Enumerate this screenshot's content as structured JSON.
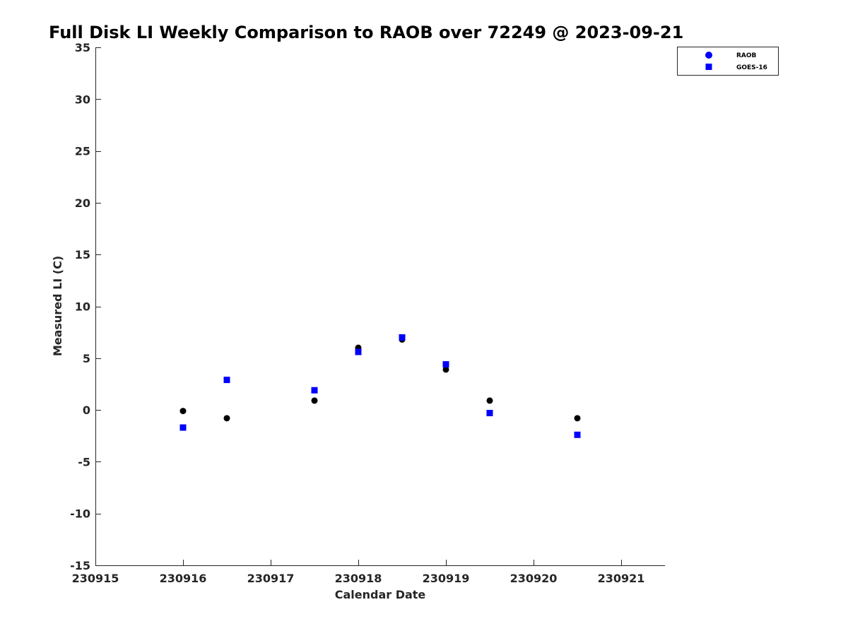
{
  "chart_data": {
    "type": "scatter",
    "title": "Full Disk LI Weekly Comparison to RAOB over 72249 @ 2023-09-21",
    "xlabel": "Calendar Date",
    "ylabel": "Measured LI (C)",
    "xlim": [
      230915,
      230921.5
    ],
    "ylim": [
      -15,
      35
    ],
    "xticks": [
      230915,
      230916,
      230917,
      230918,
      230919,
      230920,
      230921
    ],
    "xtick_labels": [
      "230915",
      "230916",
      "230917",
      "230918",
      "230919",
      "230920",
      "230921"
    ],
    "yticks": [
      -15,
      -10,
      -5,
      0,
      5,
      10,
      15,
      20,
      25,
      30,
      35
    ],
    "ytick_labels": [
      "-15",
      "-10",
      "-5",
      "0",
      "5",
      "10",
      "15",
      "20",
      "25",
      "30",
      "35"
    ],
    "grid": false,
    "legend_position": "top-right (outside axes)",
    "series": [
      {
        "name": "RAOB",
        "marker": "circle",
        "color": "#000000",
        "legend_color": "#0000ff",
        "x": [
          230916,
          230916.5,
          230917.5,
          230918,
          230918.5,
          230919,
          230919.5,
          230920.5
        ],
        "y": [
          -0.1,
          -0.8,
          0.9,
          6.0,
          6.8,
          3.9,
          0.9,
          -0.8
        ]
      },
      {
        "name": "GOES-16",
        "marker": "square",
        "color": "#0000ff",
        "legend_color": "#0000ff",
        "x": [
          230916,
          230916.5,
          230917.5,
          230918,
          230918.5,
          230919,
          230919.5,
          230920.5
        ],
        "y": [
          -1.7,
          2.9,
          1.9,
          5.6,
          7.0,
          4.4,
          -0.3,
          -2.4
        ]
      }
    ]
  }
}
